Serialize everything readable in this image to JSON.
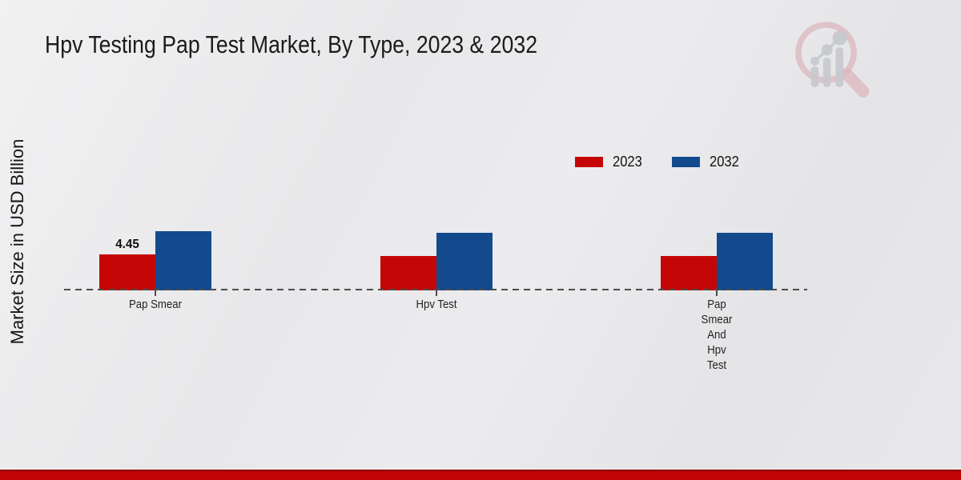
{
  "title": "Hpv Testing Pap Test Market, By Type, 2023 & 2032",
  "y_axis_label": "Market Size in USD Billion",
  "legend": {
    "items": [
      {
        "label": "2023",
        "color": "#c40606"
      },
      {
        "label": "2032",
        "color": "#134a8e"
      }
    ],
    "position": "top-right"
  },
  "chart_data": {
    "type": "bar",
    "title": "Hpv Testing Pap Test Market, By Type, 2023 & 2032",
    "xlabel": "",
    "ylabel": "Market Size in USD Billion",
    "categories": [
      "Pap Smear",
      "Hpv Test",
      "Pap Smear And Hpv Test"
    ],
    "category_label_lines": [
      [
        "Pap Smear"
      ],
      [
        "Hpv Test"
      ],
      [
        "Pap",
        "Smear",
        "And",
        "Hpv",
        "Test"
      ]
    ],
    "series": [
      {
        "name": "2023",
        "color": "#c40606",
        "values": [
          4.45,
          4.3,
          4.3
        ]
      },
      {
        "name": "2032",
        "color": "#134a8e",
        "values": [
          7.3,
          7.15,
          7.1
        ]
      }
    ],
    "value_labels": [
      {
        "category_index": 0,
        "series_index": 0,
        "text": "4.45"
      }
    ],
    "ylim": [
      0,
      8
    ],
    "grid": false,
    "baseline_style": "dashed",
    "legend_position": "top-right"
  },
  "watermark_icon": "magnifier-bar-chart-logo",
  "footer": {
    "band_color": "#c10505"
  }
}
